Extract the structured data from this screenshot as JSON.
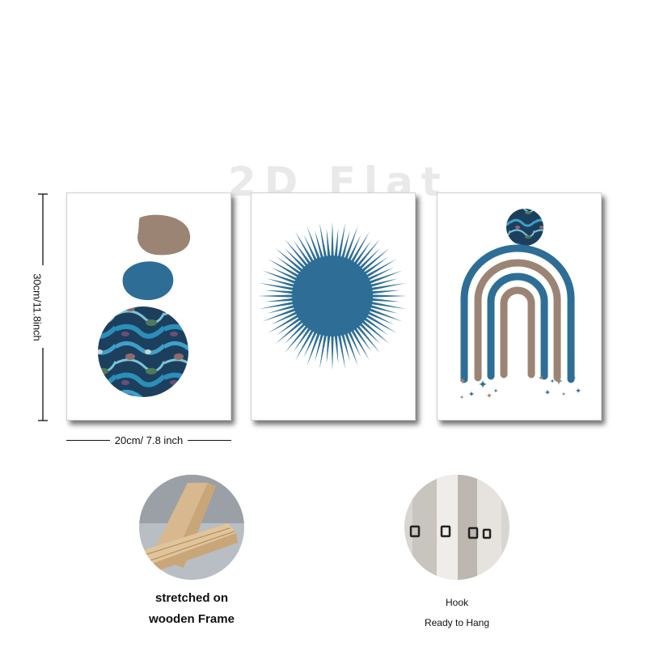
{
  "watermark": "2D Flat",
  "dimensions": {
    "height_label": "30cm/11.8inch",
    "width_label": "20cm/ 7.8 inch"
  },
  "features": [
    {
      "name": "frame",
      "line1": "stretched on",
      "line2": "wooden Frame"
    },
    {
      "name": "hook",
      "line1": "Hook",
      "line2": "Ready to Hang"
    }
  ],
  "colors": {
    "blue": "#2e6e96",
    "taupe": "#9c8474",
    "marble_dark": "#1d3f5e",
    "wood": "#d8b88e"
  }
}
